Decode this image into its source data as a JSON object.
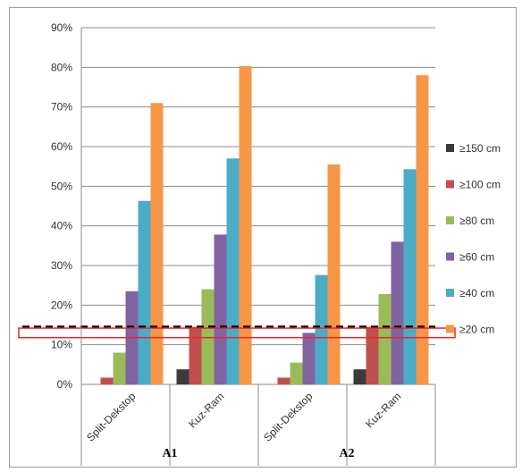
{
  "chart_data": {
    "type": "bar",
    "categories": [
      "Split-Dekstop",
      "Kuz-Ram",
      "Split-Dekstop",
      "Kuz-Ram"
    ],
    "groups": [
      "A1",
      "A2"
    ],
    "ylim": [
      0,
      90
    ],
    "yticks": [
      "0%",
      "10%",
      "20%",
      "30%",
      "40%",
      "50%",
      "60%",
      "70%",
      "80%",
      "90%"
    ],
    "grid": true,
    "legend_position": "right",
    "reference_line": {
      "value": 14.5,
      "style": "dashed",
      "color": "#000000"
    },
    "highlight_box": {
      "from": 11.8,
      "to": 14.2,
      "color": "#e8262b"
    },
    "series": [
      {
        "name": "≥150 cm",
        "color": "#3b3b3b",
        "values": [
          0,
          3.8,
          0,
          3.8
        ]
      },
      {
        "name": "≥100 cm",
        "color": "#c0504d",
        "values": [
          1.7,
          14.5,
          1.7,
          14.5
        ]
      },
      {
        "name": "≥80 cm",
        "color": "#9bbb59",
        "values": [
          8.0,
          24.0,
          5.5,
          22.8
        ]
      },
      {
        "name": "≥60 cm",
        "color": "#8064a2",
        "values": [
          23.5,
          37.8,
          13.0,
          36.0
        ]
      },
      {
        "name": "≥40 cm",
        "color": "#4bacc6",
        "values": [
          46.3,
          57.0,
          27.6,
          54.3
        ]
      },
      {
        "name": "≥20 cm",
        "color": "#f79646",
        "values": [
          71.0,
          80.3,
          55.5,
          78.0
        ]
      }
    ]
  }
}
